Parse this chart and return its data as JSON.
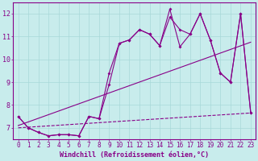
{
  "bg_color": "#c8ecec",
  "grid_color": "#a8d8d8",
  "line_color": "#880088",
  "xlabel": "Windchill (Refroidissement éolien,°C)",
  "ylabel_ticks": [
    7,
    8,
    9,
    10,
    11,
    12
  ],
  "xlim": [
    -0.5,
    23.5
  ],
  "ylim": [
    6.5,
    12.5
  ],
  "line1_x": [
    0,
    1,
    2,
    3,
    4,
    5,
    6,
    7,
    8,
    9,
    10,
    11,
    12,
    13,
    14,
    15,
    16,
    17,
    18,
    19,
    20,
    21,
    22,
    23
  ],
  "line1_y": [
    7.5,
    7.0,
    6.8,
    6.65,
    6.7,
    6.7,
    6.65,
    7.5,
    7.4,
    9.4,
    10.7,
    10.85,
    11.3,
    11.1,
    10.6,
    12.2,
    10.55,
    11.1,
    12.0,
    10.85,
    9.4,
    9.0,
    12.0,
    7.65
  ],
  "line2_x": [
    0,
    1,
    2,
    3,
    4,
    5,
    6,
    7,
    8,
    9,
    10,
    11,
    12,
    13,
    14,
    15,
    16,
    17,
    18,
    19,
    20,
    21,
    22,
    23
  ],
  "line2_y": [
    7.5,
    7.0,
    6.8,
    6.65,
    6.7,
    6.7,
    6.65,
    7.5,
    7.4,
    8.9,
    10.7,
    10.85,
    11.3,
    11.1,
    10.6,
    11.85,
    11.3,
    11.1,
    12.0,
    10.85,
    9.4,
    9.0,
    12.0,
    7.65
  ],
  "line3_x": [
    0,
    23
  ],
  "line3_y": [
    7.1,
    10.75
  ],
  "line4_x": [
    0,
    23
  ],
  "line4_y": [
    7.0,
    7.65
  ],
  "xtick_labels": [
    "0",
    "1",
    "2",
    "3",
    "4",
    "5",
    "6",
    "7",
    "8",
    "9",
    "10",
    "11",
    "12",
    "13",
    "14",
    "15",
    "16",
    "17",
    "18",
    "19",
    "20",
    "21",
    "22",
    "23"
  ],
  "font_size_tick": 5.5,
  "font_size_label": 6.0,
  "line_width": 0.8,
  "marker_size": 2.0
}
